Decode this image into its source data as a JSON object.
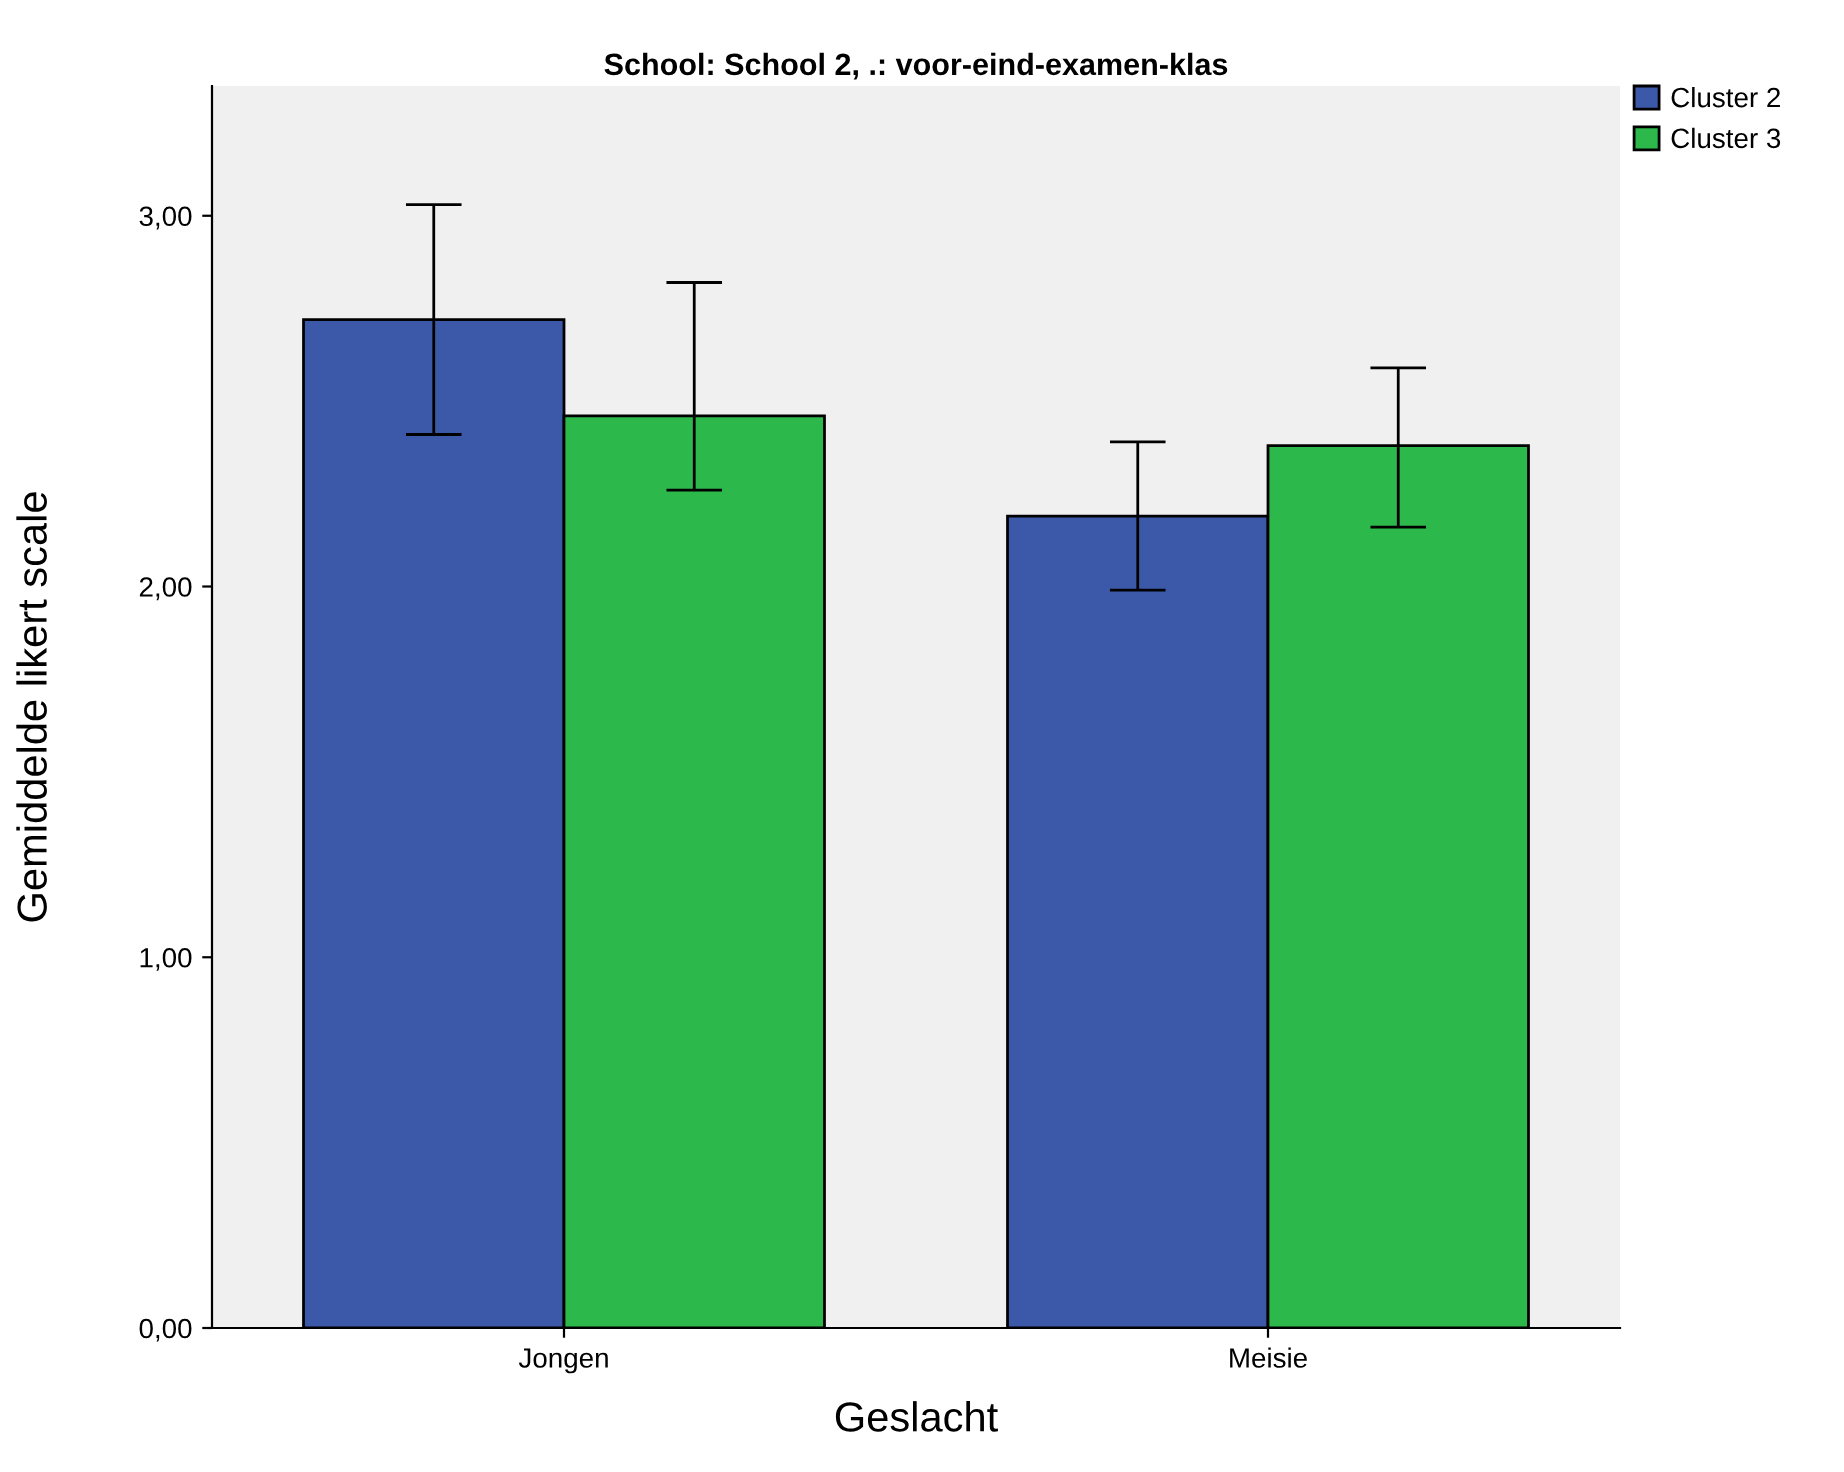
{
  "chart_data": {
    "type": "bar",
    "title": "School: School 2, .: voor-eind-examen-klas",
    "xlabel": "Geslacht",
    "ylabel": "Gemiddelde likert scale",
    "categories": [
      "Jongen",
      "Meisie"
    ],
    "series": [
      {
        "name": "Cluster 2",
        "color": "#3c58a8",
        "values": [
          2.72,
          2.19
        ],
        "errors": [
          [
            2.41,
            3.03
          ],
          [
            1.99,
            2.39
          ]
        ]
      },
      {
        "name": "Cluster 3",
        "color": "#2db84b",
        "values": [
          2.46,
          2.38
        ],
        "errors": [
          [
            2.26,
            2.82
          ],
          [
            2.16,
            2.59
          ]
        ]
      }
    ],
    "ylim": [
      0,
      3.35
    ],
    "yticks": [
      {
        "value": 0,
        "label": "0,00"
      },
      {
        "value": 1,
        "label": "1,00"
      },
      {
        "value": 2,
        "label": "2,00"
      },
      {
        "value": 3,
        "label": "3,00"
      }
    ],
    "grid": false,
    "legend": "top right"
  }
}
